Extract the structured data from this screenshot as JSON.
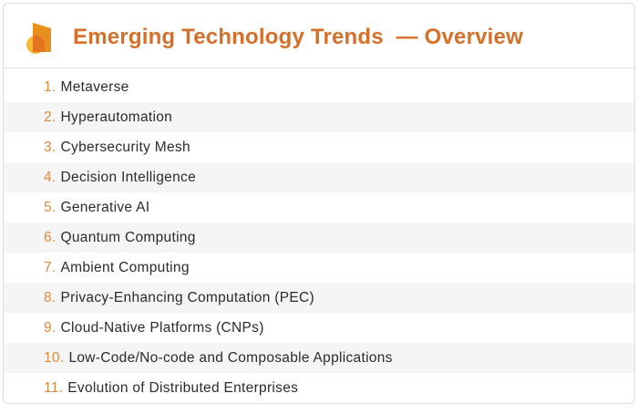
{
  "header": {
    "title": "Emerging Technology Trends  — Overview"
  },
  "colors": {
    "accent": "#d66f27",
    "number": "#e0893a"
  },
  "items": [
    {
      "num": "1.",
      "label": "Metaverse"
    },
    {
      "num": "2.",
      "label": "Hyperautomation"
    },
    {
      "num": "3.",
      "label": "Cybersecurity Mesh"
    },
    {
      "num": "4.",
      "label": "Decision Intelligence"
    },
    {
      "num": "5.",
      "label": "Generative AI"
    },
    {
      "num": "6.",
      "label": "Quantum Computing"
    },
    {
      "num": "7.",
      "label": "Ambient Computing"
    },
    {
      "num": "8.",
      "label": "Privacy-Enhancing Computation (PEC)"
    },
    {
      "num": "9.",
      "label": "Cloud-Native Platforms (CNPs)"
    },
    {
      "num": "10.",
      "label": "Low-Code/No-code and Composable Applications"
    },
    {
      "num": "11.",
      "label": "Evolution of Distributed Enterprises"
    }
  ]
}
